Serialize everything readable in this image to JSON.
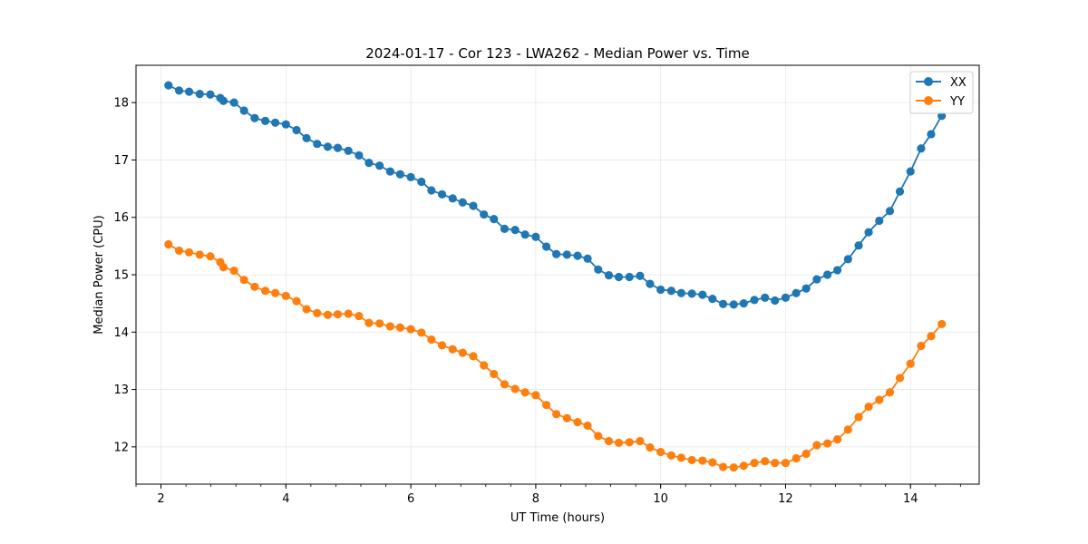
{
  "chart_data": {
    "type": "line",
    "title": "2024-01-17 - Cor 123 - LWA262 - Median Power vs. Time",
    "xlabel": "UT Time (hours)",
    "ylabel": "Median Power (CPU)",
    "xlim": [
      1.6,
      15.1
    ],
    "ylim": [
      11.35,
      18.65
    ],
    "xticks": [
      2,
      4,
      6,
      8,
      10,
      12,
      14
    ],
    "xtick_labels": [
      "2",
      "4",
      "6",
      "8",
      "10",
      "12",
      "14"
    ],
    "yticks": [
      12,
      13,
      14,
      15,
      16,
      17,
      18
    ],
    "ytick_labels": [
      "12",
      "13",
      "14",
      "15",
      "16",
      "17",
      "18"
    ],
    "x_minor_step": 0.4,
    "grid": true,
    "legend_position": "top-right",
    "x": [
      2.12,
      2.29,
      2.45,
      2.62,
      2.79,
      2.95,
      3.0,
      3.17,
      3.33,
      3.5,
      3.67,
      3.83,
      4.0,
      4.17,
      4.33,
      4.5,
      4.67,
      4.83,
      5.0,
      5.17,
      5.33,
      5.5,
      5.67,
      5.83,
      6.0,
      6.17,
      6.33,
      6.5,
      6.67,
      6.83,
      7.0,
      7.17,
      7.33,
      7.5,
      7.67,
      7.83,
      8.0,
      8.17,
      8.33,
      8.5,
      8.67,
      8.83,
      9.0,
      9.17,
      9.33,
      9.5,
      9.67,
      9.83,
      10.0,
      10.17,
      10.33,
      10.5,
      10.67,
      10.83,
      11.0,
      11.17,
      11.33,
      11.5,
      11.67,
      11.83,
      12.0,
      12.17,
      12.33,
      12.5,
      12.67,
      12.83,
      13.0,
      13.17,
      13.33,
      13.5,
      13.67,
      13.83,
      14.0,
      14.17,
      14.33,
      14.5
    ],
    "series": [
      {
        "name": "XX",
        "color": "#1f77b4",
        "values": [
          18.3,
          18.21,
          18.19,
          18.15,
          18.14,
          18.08,
          18.03,
          18.0,
          17.86,
          17.73,
          17.68,
          17.65,
          17.62,
          17.52,
          17.38,
          17.28,
          17.23,
          17.21,
          17.16,
          17.08,
          16.95,
          16.9,
          16.8,
          16.75,
          16.7,
          16.62,
          16.47,
          16.4,
          16.33,
          16.26,
          16.2,
          16.05,
          15.97,
          15.8,
          15.78,
          15.7,
          15.66,
          15.49,
          15.36,
          15.35,
          15.33,
          15.28,
          15.09,
          14.99,
          14.96,
          14.96,
          14.98,
          14.84,
          14.74,
          14.72,
          14.68,
          14.67,
          14.65,
          14.58,
          14.49,
          14.48,
          14.5,
          14.56,
          14.6,
          14.55,
          14.6,
          14.68,
          14.76,
          14.92,
          15.0,
          15.08,
          15.27,
          15.51,
          15.74,
          15.94,
          16.11,
          16.45,
          16.8,
          17.2,
          17.45,
          17.77
        ]
      },
      {
        "name": "YY",
        "color": "#ff7f0e",
        "values": [
          15.53,
          15.42,
          15.39,
          15.35,
          15.32,
          15.22,
          15.13,
          15.07,
          14.91,
          14.79,
          14.72,
          14.68,
          14.63,
          14.54,
          14.4,
          14.33,
          14.3,
          14.31,
          14.32,
          14.28,
          14.16,
          14.15,
          14.1,
          14.08,
          14.05,
          13.99,
          13.87,
          13.77,
          13.7,
          13.64,
          13.58,
          13.42,
          13.27,
          13.09,
          13.01,
          12.95,
          12.9,
          12.73,
          12.57,
          12.5,
          12.43,
          12.37,
          12.19,
          12.1,
          12.07,
          12.08,
          12.1,
          11.99,
          11.91,
          11.85,
          11.81,
          11.77,
          11.76,
          11.73,
          11.65,
          11.64,
          11.67,
          11.72,
          11.75,
          11.72,
          11.72,
          11.8,
          11.88,
          12.03,
          12.06,
          12.13,
          12.3,
          12.52,
          12.7,
          12.82,
          12.95,
          13.2,
          13.45,
          13.76,
          13.93,
          14.14
        ]
      }
    ]
  }
}
